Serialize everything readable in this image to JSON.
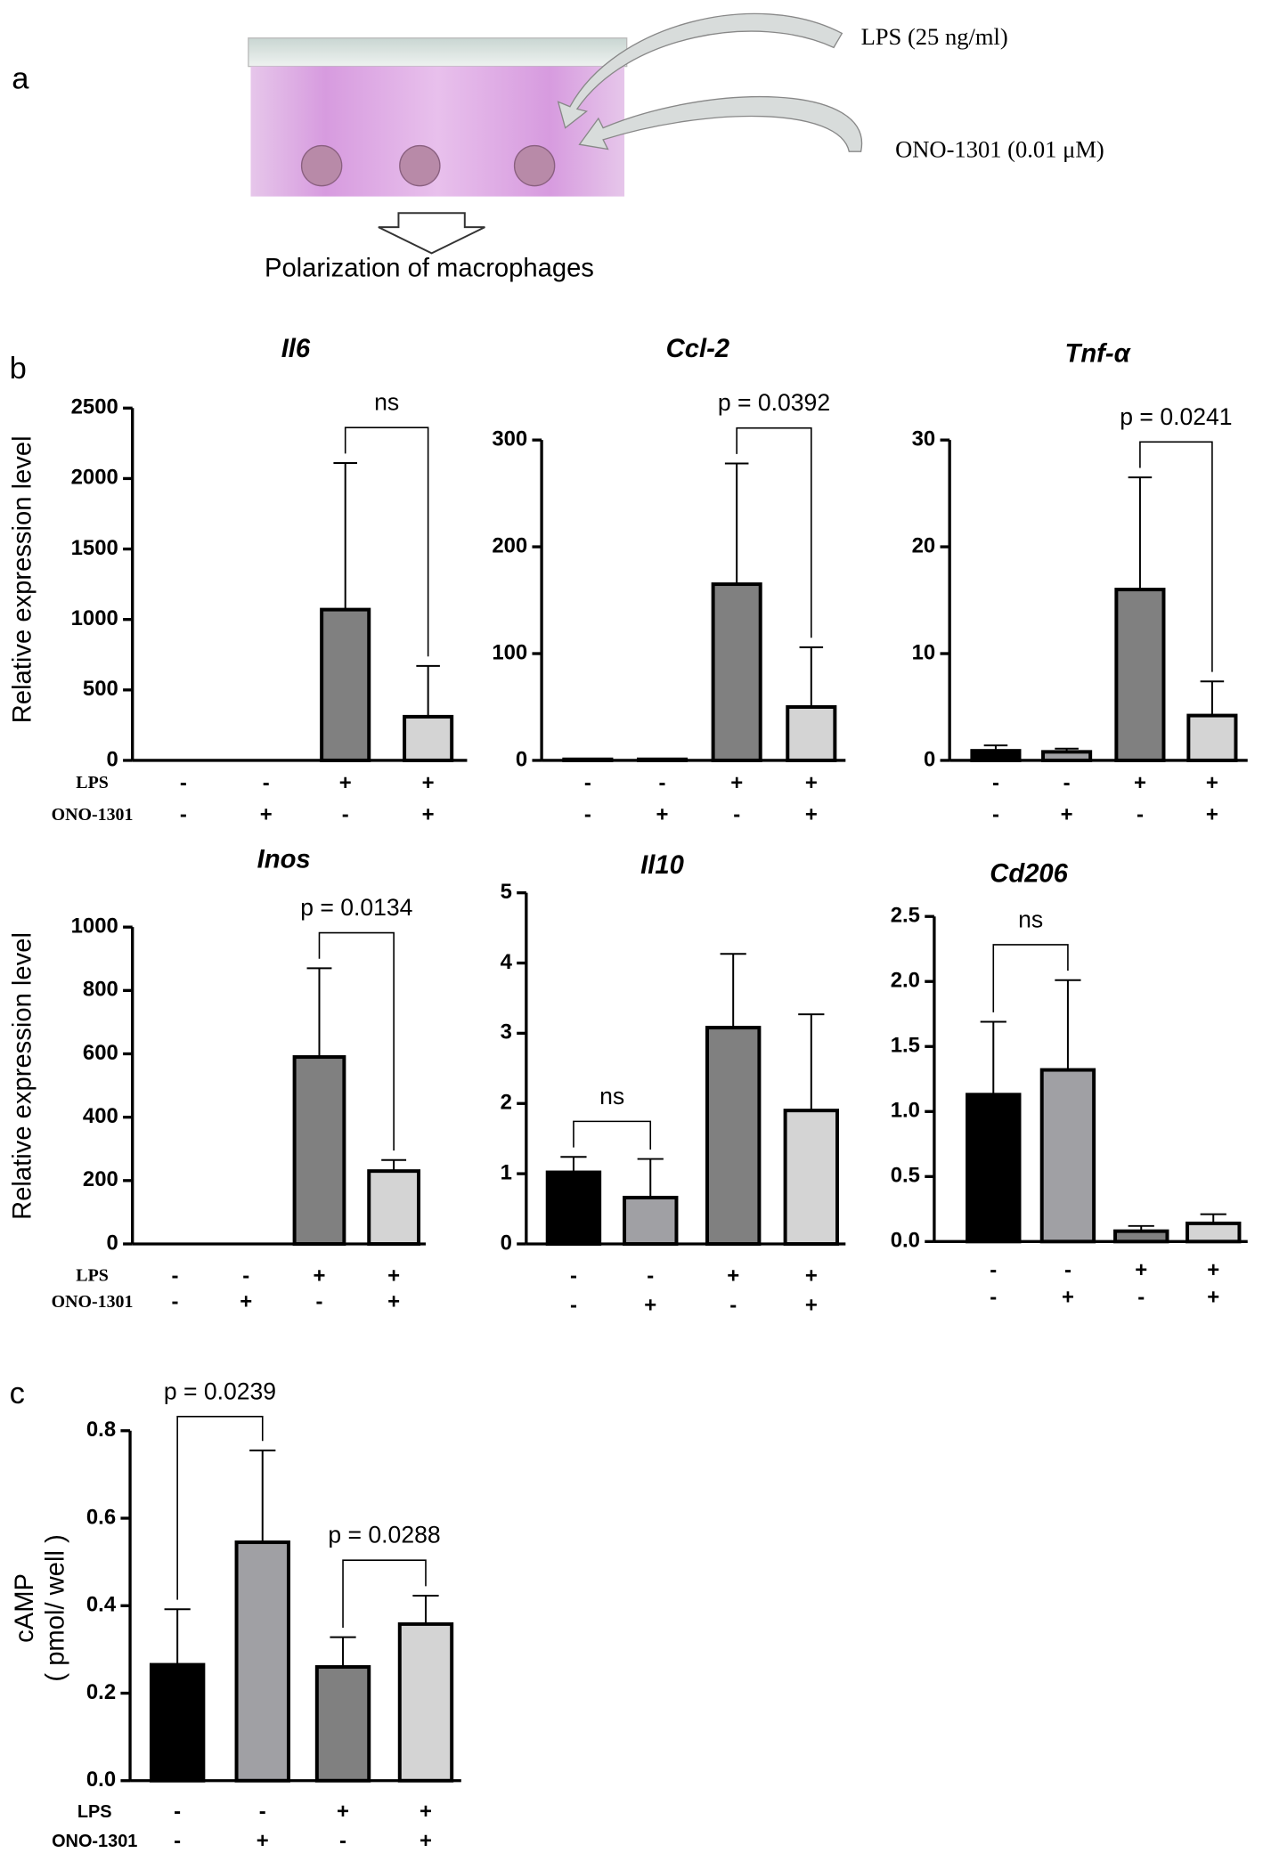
{
  "panel_labels": [
    "a",
    "b",
    "c"
  ],
  "diagram": {
    "treatments": [
      "LPS (25 ng/ml)",
      "ONO-1301 (0.01 μM)"
    ],
    "caption": "Polarization of macrophages"
  },
  "chart_data": [
    {
      "type": "bar",
      "title": "Il6",
      "ylabel": [
        "Relative expression level"
      ],
      "conditions": [
        {
          "name": "LPS",
          "signs": [
            "-",
            "-",
            "+",
            "+"
          ]
        },
        {
          "name": "ONO-1301",
          "signs": [
            "-",
            "+",
            "-",
            "+"
          ]
        }
      ],
      "values": [
        0,
        0,
        1070,
        310
      ],
      "errors": [
        0,
        0,
        1040,
        360
      ],
      "colors": [
        "#000000",
        "#a0a0a4",
        "#808080",
        "#d4d4d4"
      ],
      "ylim": [
        0,
        2500
      ],
      "yticks": [
        0,
        500,
        1000,
        1500,
        2000,
        2500
      ],
      "comparisons": [
        {
          "from": 2,
          "to": 3,
          "label": "ns"
        }
      ]
    },
    {
      "type": "bar",
      "title": "Ccl-2",
      "conditions": [
        {
          "signs": [
            "-",
            "-",
            "+",
            "+"
          ]
        },
        {
          "signs": [
            "-",
            "+",
            "-",
            "+"
          ]
        }
      ],
      "values": [
        1,
        1,
        165,
        50
      ],
      "errors": [
        0,
        0,
        113,
        56
      ],
      "colors": [
        "#000000",
        "#a0a0a4",
        "#808080",
        "#d4d4d4"
      ],
      "ylim": [
        0,
        300
      ],
      "yticks": [
        0,
        100,
        200,
        300
      ],
      "comparisons": [
        {
          "from": 2,
          "to": 3,
          "label": "p = 0.0392"
        }
      ]
    },
    {
      "type": "bar",
      "title": "Tnf-α",
      "conditions": [
        {
          "signs": [
            "-",
            "-",
            "+",
            "+"
          ]
        },
        {
          "signs": [
            "-",
            "+",
            "-",
            "+"
          ]
        }
      ],
      "values": [
        0.9,
        0.8,
        16,
        4.2
      ],
      "errors": [
        0.5,
        0.3,
        10.5,
        3.2
      ],
      "colors": [
        "#000000",
        "#a0a0a4",
        "#808080",
        "#d4d4d4"
      ],
      "ylim": [
        0,
        30
      ],
      "yticks": [
        0,
        10,
        20,
        30
      ],
      "comparisons": [
        {
          "from": 2,
          "to": 3,
          "label": "p = 0.0241"
        }
      ]
    },
    {
      "type": "bar",
      "title": "Inos",
      "ylabel": [
        "Relative expression level"
      ],
      "conditions": [
        {
          "name": "LPS",
          "signs": [
            "-",
            "-",
            "+",
            "+"
          ]
        },
        {
          "name": "ONO-1301",
          "signs": [
            "-",
            "+",
            "-",
            "+"
          ]
        }
      ],
      "values": [
        0,
        0,
        590,
        230
      ],
      "errors": [
        0,
        0,
        280,
        35
      ],
      "colors": [
        "#000000",
        "#a0a0a4",
        "#808080",
        "#d4d4d4"
      ],
      "ylim": [
        0,
        1000
      ],
      "yticks": [
        0,
        200,
        400,
        600,
        800,
        1000
      ],
      "comparisons": [
        {
          "from": 2,
          "to": 3,
          "label": "p = 0.0134"
        }
      ]
    },
    {
      "type": "bar",
      "title": "Il10",
      "conditions": [
        {
          "signs": [
            "-",
            "-",
            "+",
            "+"
          ]
        },
        {
          "signs": [
            "-",
            "+",
            "-",
            "+"
          ]
        }
      ],
      "values": [
        1.02,
        0.66,
        3.08,
        1.9
      ],
      "errors": [
        0.22,
        0.55,
        1.05,
        1.37
      ],
      "colors": [
        "#000000",
        "#a0a0a4",
        "#808080",
        "#d4d4d4"
      ],
      "ylim": [
        0,
        5
      ],
      "yticks": [
        0,
        1,
        2,
        3,
        4,
        5
      ],
      "comparisons": [
        {
          "from": 0,
          "to": 1,
          "label": "ns"
        }
      ]
    },
    {
      "type": "bar",
      "title": "Cd206",
      "conditions": [
        {
          "signs": [
            "-",
            "-",
            "+",
            "+"
          ]
        },
        {
          "signs": [
            "-",
            "+",
            "-",
            "+"
          ]
        }
      ],
      "values": [
        1.13,
        1.32,
        0.08,
        0.14
      ],
      "errors": [
        0.56,
        0.69,
        0.04,
        0.07
      ],
      "colors": [
        "#000000",
        "#a0a0a4",
        "#808080",
        "#d4d4d4"
      ],
      "ylim": [
        0,
        2.5
      ],
      "yticks": [
        {
          "value": 0,
          "label": "0.0"
        },
        {
          "value": 0.5,
          "label": "0.5"
        },
        {
          "value": 1,
          "label": "1.0"
        },
        {
          "value": 1.5,
          "label": "1.5"
        },
        {
          "value": 2,
          "label": "2.0"
        },
        {
          "value": 2.5,
          "label": "2.5"
        }
      ],
      "comparisons": [
        {
          "from": 0,
          "to": 1,
          "label": "ns"
        }
      ]
    },
    {
      "type": "bar",
      "ylabel": [
        "cAMP",
        "( pmol/ well )"
      ],
      "conditions": [
        {
          "name": "LPS",
          "signs": [
            "-",
            "-",
            "+",
            "+"
          ]
        },
        {
          "name": "ONO-1301",
          "signs": [
            "-",
            "+",
            "-",
            "+"
          ]
        }
      ],
      "values": [
        0.265,
        0.545,
        0.26,
        0.358
      ],
      "errors": [
        0.127,
        0.21,
        0.068,
        0.065
      ],
      "colors": [
        "#000000",
        "#a0a0a4",
        "#808080",
        "#d4d4d4"
      ],
      "ylim": [
        0,
        0.8
      ],
      "yticks": [
        {
          "value": 0,
          "label": "0.0"
        },
        {
          "value": 0.2,
          "label": "0.2"
        },
        {
          "value": 0.4,
          "label": "0.4"
        },
        {
          "value": 0.6,
          "label": "0.6"
        },
        {
          "value": 0.8,
          "label": "0.8"
        }
      ],
      "comparisons": [
        {
          "from": 0,
          "to": 1,
          "label": "p = 0.0239"
        },
        {
          "from": 2,
          "to": 3,
          "label": "p = 0.0288"
        }
      ]
    }
  ]
}
